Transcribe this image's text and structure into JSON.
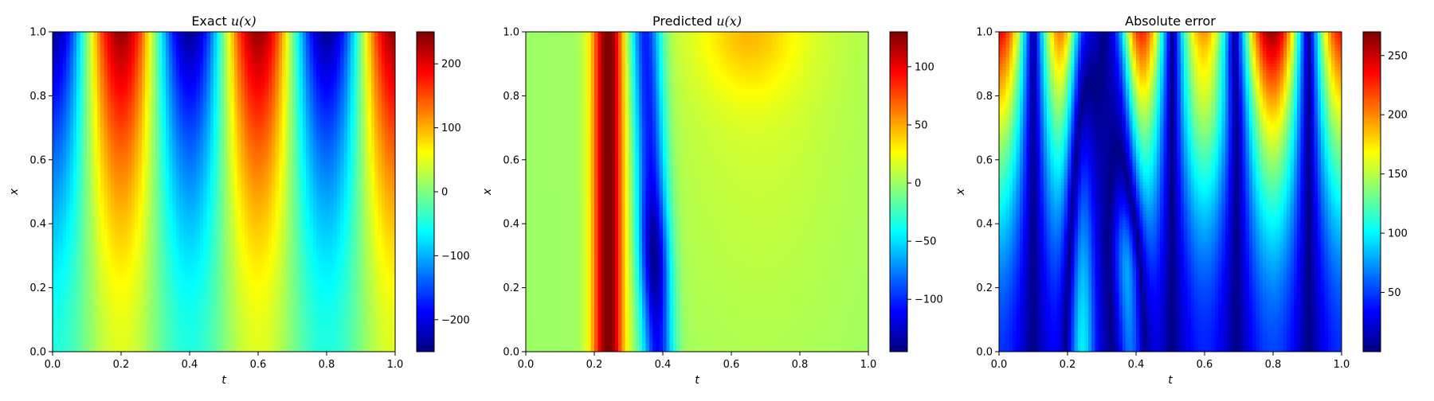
{
  "chart_data": [
    {
      "type": "heatmap",
      "title_prefix": "Exact ",
      "title_math": "u(x)",
      "xlabel": "t",
      "ylabel": "x",
      "xlim": [
        0,
        1
      ],
      "ylim": [
        0,
        1
      ],
      "x_ticks": [
        "0.0",
        "0.2",
        "0.4",
        "0.6",
        "0.8",
        "1.0"
      ],
      "y_ticks": [
        "0.0",
        "0.2",
        "0.4",
        "0.6",
        "0.8",
        "1.0"
      ],
      "colormap": "jet",
      "colorbar": {
        "min": -250,
        "max": 250,
        "ticks": [
          -200,
          -100,
          0,
          100,
          200
        ],
        "tick_labels": [
          "−200",
          "−100",
          "0",
          "100",
          "200"
        ]
      },
      "field": "exact"
    },
    {
      "type": "heatmap",
      "title_prefix": "Predicted ",
      "title_math": "u(x)",
      "xlabel": "t",
      "ylabel": "x",
      "xlim": [
        0,
        1
      ],
      "ylim": [
        0,
        1
      ],
      "x_ticks": [
        "0.0",
        "0.2",
        "0.4",
        "0.6",
        "0.8",
        "1.0"
      ],
      "y_ticks": [
        "0.0",
        "0.2",
        "0.4",
        "0.6",
        "0.8",
        "1.0"
      ],
      "colormap": "jet",
      "colorbar": {
        "min": -145,
        "max": 130,
        "ticks": [
          -100,
          -50,
          0,
          50,
          100
        ],
        "tick_labels": [
          "−100",
          "−50",
          "0",
          "50",
          "100"
        ]
      },
      "field": "predicted"
    },
    {
      "type": "heatmap",
      "title_prefix": "Absolute error",
      "title_math": "",
      "xlabel": "t",
      "ylabel": "x",
      "xlim": [
        0,
        1
      ],
      "ylim": [
        0,
        1
      ],
      "x_ticks": [
        "0.0",
        "0.2",
        "0.4",
        "0.6",
        "0.8",
        "1.0"
      ],
      "y_ticks": [
        "0.0",
        "0.2",
        "0.4",
        "0.6",
        "0.8",
        "1.0"
      ],
      "colormap": "jet",
      "colorbar": {
        "min": 0,
        "max": 270,
        "ticks": [
          50,
          100,
          150,
          200,
          250
        ],
        "tick_labels": [
          "50",
          "100",
          "150",
          "200",
          "250"
        ]
      },
      "field": "error"
    }
  ]
}
